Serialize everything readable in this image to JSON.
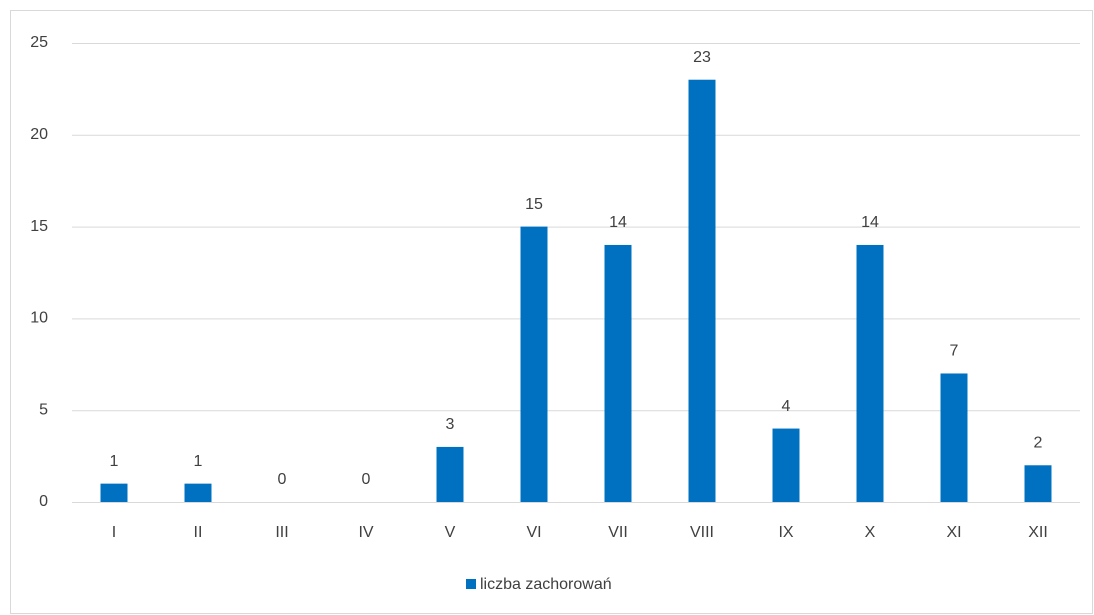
{
  "chart_data": {
    "type": "bar",
    "categories": [
      "I",
      "II",
      "III",
      "IV",
      "V",
      "VI",
      "VII",
      "VIII",
      "IX",
      "X",
      "XI",
      "XII"
    ],
    "series": [
      {
        "name": "liczba zachorowań",
        "color": "#0070c0",
        "values": [
          1,
          1,
          0,
          0,
          3,
          15,
          14,
          23,
          4,
          14,
          7,
          2
        ]
      }
    ],
    "ylim": [
      0,
      25
    ],
    "yticks": [
      0,
      5,
      10,
      15,
      20,
      25
    ],
    "grid": true,
    "legend": "bottom",
    "data_labels": true
  }
}
